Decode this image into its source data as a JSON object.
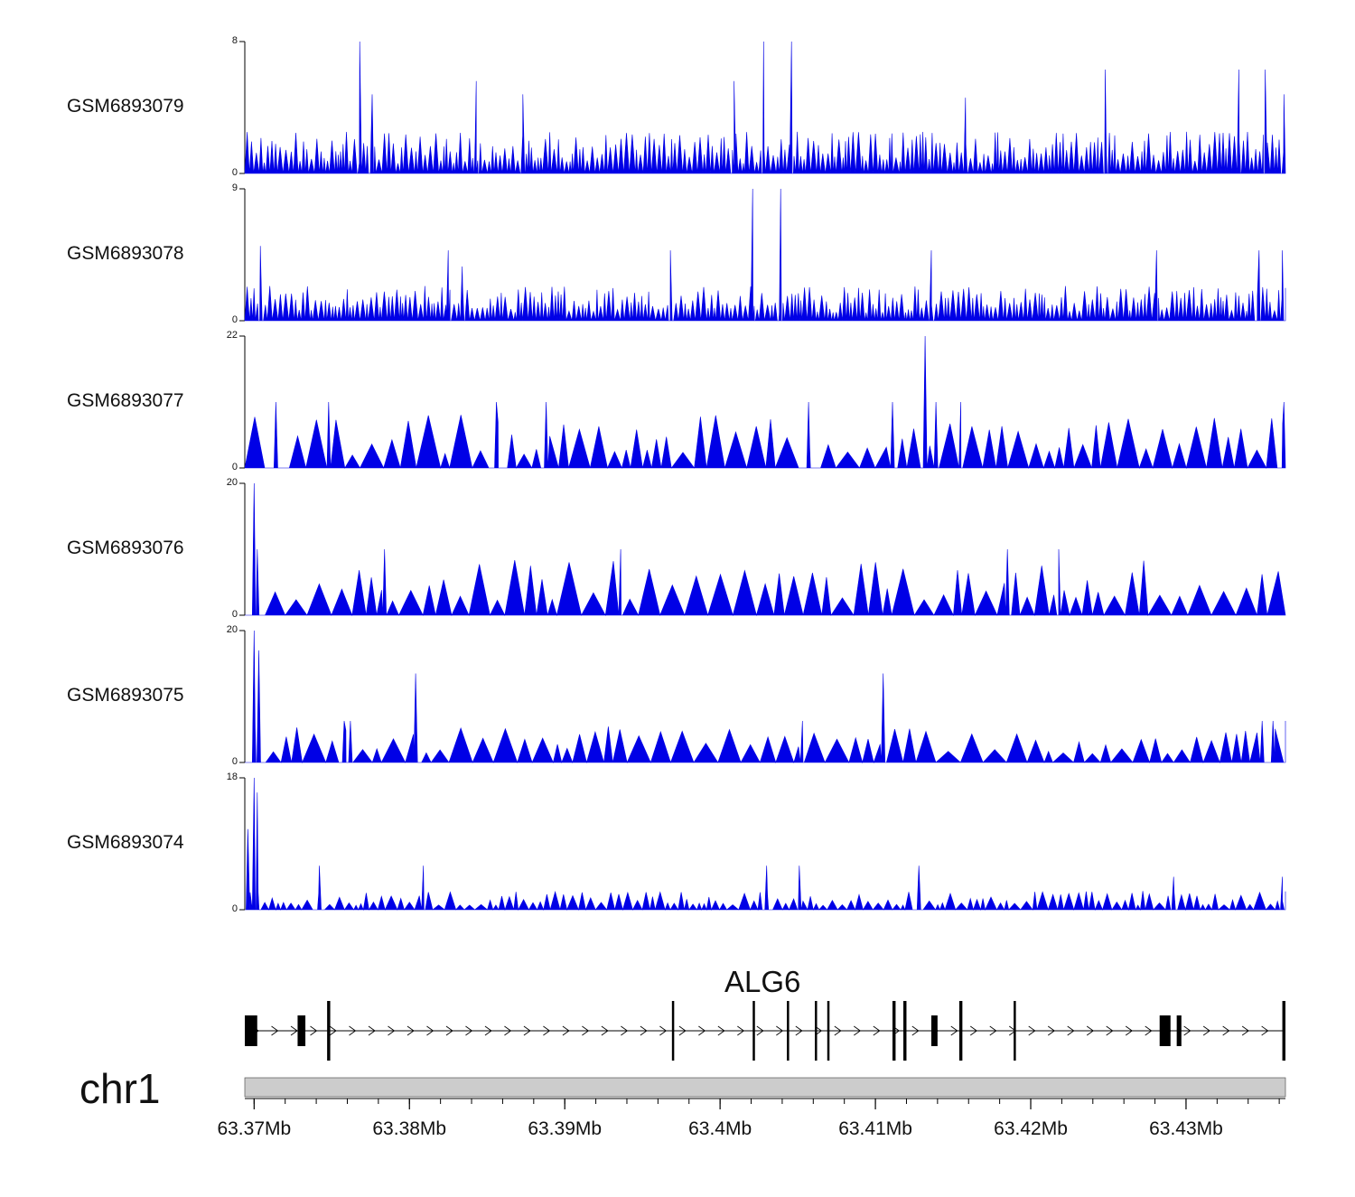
{
  "chart_data": {
    "type": "area",
    "tracks": [
      {
        "name": "GSM6893079",
        "ymax": 8,
        "ymin": 0,
        "peaks": [
          [
            63.3768,
            8
          ],
          [
            63.3776,
            4.8
          ],
          [
            63.3843,
            5.6
          ],
          [
            63.4028,
            8
          ],
          [
            63.4046,
            8
          ],
          [
            63.4009,
            5.6
          ],
          [
            63.3873,
            4.8
          ],
          [
            63.4158,
            4.6
          ],
          [
            63.4248,
            6.3
          ],
          [
            63.4334,
            6.3
          ],
          [
            63.4363,
            4.8
          ],
          [
            63.4351,
            6.3
          ]
        ],
        "baseline": 1.5,
        "color": "#0000e6"
      },
      {
        "name": "GSM6893078",
        "ymax": 9,
        "ymin": 0,
        "peaks": [
          [
            63.3704,
            5.1
          ],
          [
            63.3825,
            4.8
          ],
          [
            63.3834,
            3.7
          ],
          [
            63.3968,
            4.8
          ],
          [
            63.4021,
            9
          ],
          [
            63.4039,
            9
          ],
          [
            63.4136,
            4.8
          ],
          [
            63.4281,
            4.8
          ],
          [
            63.4347,
            4.8
          ],
          [
            63.4362,
            4.8
          ]
        ],
        "baseline": 1.4,
        "color": "#0000e6"
      },
      {
        "name": "GSM6893077",
        "ymax": 22,
        "ymin": 0,
        "peaks": [
          [
            63.3714,
            11
          ],
          [
            63.3748,
            11
          ],
          [
            63.3856,
            11
          ],
          [
            63.3888,
            11
          ],
          [
            63.4057,
            11
          ],
          [
            63.4111,
            11
          ],
          [
            63.4132,
            22
          ],
          [
            63.4139,
            11
          ],
          [
            63.4155,
            11
          ],
          [
            63.4363,
            11
          ]
        ],
        "baseline": 5.2,
        "color": "#0000e6"
      },
      {
        "name": "GSM6893076",
        "ymax": 20,
        "ymin": 0,
        "peaks": [
          [
            63.37,
            20
          ],
          [
            63.3702,
            10
          ],
          [
            63.3784,
            10
          ],
          [
            63.3936,
            10
          ],
          [
            63.4185,
            10
          ],
          [
            63.4218,
            10
          ]
        ],
        "baseline": 5,
        "color": "#0000e6"
      },
      {
        "name": "GSM6893075",
        "ymax": 20,
        "ymin": 0,
        "peaks": [
          [
            63.37,
            20
          ],
          [
            63.3703,
            17
          ],
          [
            63.3804,
            13.5
          ],
          [
            63.4105,
            13.5
          ],
          [
            63.3758,
            6.3
          ],
          [
            63.3762,
            6.3
          ],
          [
            63.4053,
            6.3
          ],
          [
            63.4349,
            6.3
          ],
          [
            63.4356,
            6.3
          ],
          [
            63.4364,
            6.3
          ]
        ],
        "baseline": 3.2,
        "color": "#0000e6"
      },
      {
        "name": "GSM6893074",
        "ymax": 18,
        "ymin": 0,
        "peaks": [
          [
            63.3696,
            11
          ],
          [
            63.37,
            18
          ],
          [
            63.3702,
            16
          ],
          [
            63.3742,
            6
          ],
          [
            63.3809,
            6
          ],
          [
            63.403,
            6
          ],
          [
            63.4051,
            6
          ],
          [
            63.4128,
            6
          ],
          [
            63.4292,
            4.5
          ],
          [
            63.4362,
            4.5
          ]
        ],
        "baseline": 1.5,
        "color": "#0000e6"
      }
    ],
    "gene": {
      "name": "ALG6",
      "start": 63.3694,
      "end": 63.4364,
      "exons": [
        [
          63.3694,
          63.3702
        ],
        [
          63.3728,
          63.3733
        ],
        [
          63.3747,
          63.3749
        ],
        [
          63.3969,
          63.397
        ],
        [
          63.4021,
          63.4022
        ],
        [
          63.4043,
          63.4044
        ],
        [
          63.4061,
          63.4062
        ],
        [
          63.4069,
          63.407
        ],
        [
          63.4111,
          63.4113
        ],
        [
          63.4118,
          63.412
        ],
        [
          63.4136,
          63.414
        ],
        [
          63.4154,
          63.4156
        ],
        [
          63.4189,
          63.419
        ],
        [
          63.4283,
          63.429
        ],
        [
          63.4294,
          63.4297
        ],
        [
          63.4362,
          63.4364
        ]
      ]
    },
    "chromosome": "chr1",
    "xlim": [
      63.3694,
      63.4364
    ],
    "xticks": [
      63.37,
      63.38,
      63.39,
      63.4,
      63.41,
      63.42,
      63.43
    ],
    "xtick_labels": [
      "63.37Mb",
      "63.38Mb",
      "63.39Mb",
      "63.4Mb",
      "63.41Mb",
      "63.42Mb",
      "63.43Mb"
    ]
  }
}
